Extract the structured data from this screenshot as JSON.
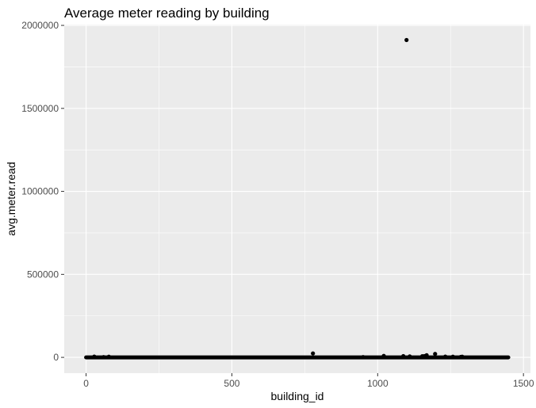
{
  "chart_data": {
    "type": "scatter",
    "title": "Average meter reading by building",
    "xlabel": "building_id",
    "ylabel": "avg.meter.read",
    "xlim": [
      -75,
      1524
    ],
    "ylim": [
      -95000,
      2005000
    ],
    "x_ticks": [
      0,
      500,
      1000,
      1500
    ],
    "x_tick_labels": [
      "0",
      "500",
      "1000",
      "1500"
    ],
    "y_ticks": [
      0,
      500000,
      1000000,
      1500000,
      2000000
    ],
    "y_tick_labels": [
      "0",
      "500000",
      "1000000",
      "1500000",
      "2000000"
    ],
    "grid": true,
    "legend": "none",
    "colors": {
      "panel": "#ebebeb",
      "grid_major": "#ffffff",
      "point": "#000000",
      "tick_text": "#4d4d4d",
      "tick_mark": "#333333"
    },
    "baseline": {
      "x_start": 0,
      "x_end": 1448,
      "y": 0,
      "description": "dense band of points at y approximately 0 for all buildings"
    },
    "points": [
      {
        "x": 1099,
        "y": 1912000
      },
      {
        "x": 778,
        "y": 24000
      },
      {
        "x": 1197,
        "y": 21000
      },
      {
        "x": 1168,
        "y": 13000
      },
      {
        "x": 1021,
        "y": 9000
      },
      {
        "x": 1088,
        "y": 8000
      },
      {
        "x": 1110,
        "y": 6000
      },
      {
        "x": 1153,
        "y": 7000
      },
      {
        "x": 1160,
        "y": 8000
      },
      {
        "x": 1232,
        "y": 5000
      },
      {
        "x": 1258,
        "y": 4000
      },
      {
        "x": 1290,
        "y": 4000
      },
      {
        "x": 1285,
        "y": 3000
      },
      {
        "x": 28,
        "y": 5000
      },
      {
        "x": 78,
        "y": 4000
      },
      {
        "x": 60,
        "y": 2000
      },
      {
        "x": 950,
        "y": 2000
      }
    ]
  }
}
